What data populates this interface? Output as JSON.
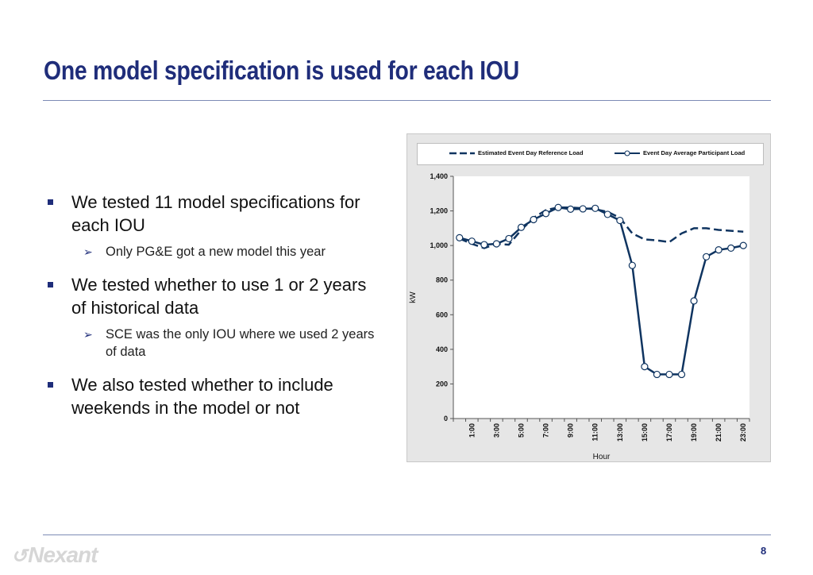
{
  "slide": {
    "title": "One model specification is used for each IOU",
    "page_number": "8",
    "logo_text": "Nexant",
    "colors": {
      "title": "#1f2d7a",
      "series": "#0f3460",
      "rule": "#7d8bb5"
    }
  },
  "bullets": [
    {
      "text": "We tested 11 model specifications for each IOU",
      "sub": [
        "Only PG&E got a new model this year"
      ]
    },
    {
      "text": "We tested whether to use 1 or 2 years of historical data",
      "sub": [
        "SCE was the only IOU where we used 2 years of data"
      ]
    },
    {
      "text": "We also tested whether to include weekends in the model or not",
      "sub": []
    }
  ],
  "chart_data": {
    "type": "line",
    "title": "",
    "xlabel": "Hour",
    "ylabel": "kW",
    "ylim": [
      0,
      1400
    ],
    "yticks": [
      "0",
      "200",
      "400",
      "600",
      "800",
      "1,000",
      "1,200",
      "1,400"
    ],
    "x": [
      "0:00",
      "1:00",
      "2:00",
      "3:00",
      "4:00",
      "5:00",
      "6:00",
      "7:00",
      "8:00",
      "9:00",
      "10:00",
      "11:00",
      "12:00",
      "13:00",
      "14:00",
      "15:00",
      "16:00",
      "17:00",
      "18:00",
      "19:00",
      "20:00",
      "21:00",
      "22:00",
      "23:00"
    ],
    "xtick_labels": [
      "1:00",
      "3:00",
      "5:00",
      "7:00",
      "9:00",
      "11:00",
      "13:00",
      "15:00",
      "17:00",
      "19:00",
      "21:00",
      "23:00"
    ],
    "grid": false,
    "legend": "top",
    "series": [
      {
        "name": "Estimated Event Day Reference Load",
        "style": "dashed",
        "values": [
          1040,
          1010,
          985,
          1010,
          1005,
          1090,
          1160,
          1205,
          1220,
          1220,
          1215,
          1210,
          1195,
          1160,
          1070,
          1035,
          1030,
          1020,
          1070,
          1100,
          1100,
          1090,
          1085,
          1080
        ]
      },
      {
        "name": "Event Day Average Participant Load",
        "style": "solid-markers",
        "values": [
          1045,
          1025,
          1005,
          1010,
          1040,
          1105,
          1150,
          1185,
          1220,
          1210,
          1212,
          1215,
          1180,
          1145,
          885,
          300,
          255,
          255,
          255,
          680,
          935,
          975,
          985,
          1000
        ]
      }
    ]
  }
}
